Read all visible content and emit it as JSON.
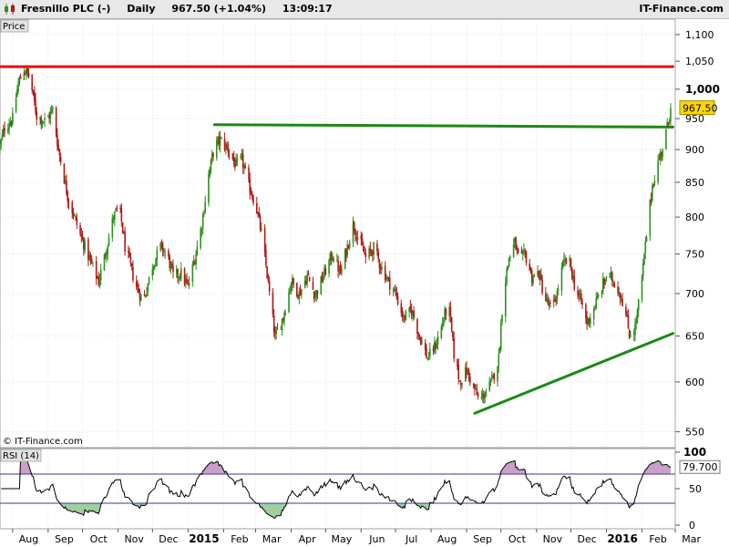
{
  "header": {
    "instrument": "Fresnillo PLC (-)",
    "interval": "Daily",
    "price_change": "967.50 (+1.04%)",
    "time": "13:09:17",
    "brand": "IT-Finance.com"
  },
  "price_panel": {
    "label": "Price",
    "copyright": "© IT-Finance.com",
    "last_price_label": "967.50"
  },
  "rsi_panel": {
    "label": "RSI (14)",
    "value_label": "79.700"
  },
  "colors": {
    "up": "#2f8f1f",
    "down": "#b01818",
    "resistance": "#e01010",
    "trendline": "#1a8a12",
    "grid": "#cccccc",
    "rsi_line": "#000000",
    "rsi_band": "#3a3a9a",
    "price_tag": "#ffd800"
  },
  "chart_data": [
    {
      "type": "candlestick",
      "title": "Fresnillo PLC (-)",
      "ylabel": "Price",
      "y_axis": {
        "ticks": [
          550,
          600,
          650,
          700,
          750,
          800,
          850,
          900,
          950,
          1000,
          1050,
          1100
        ],
        "tick_labels": [
          "550",
          "600",
          "650",
          "700",
          "750",
          "800",
          "850",
          "900",
          "950",
          "1,000",
          "1,050",
          "1,100"
        ],
        "bold_tick": 1000,
        "scale": "log",
        "range": [
          535,
          1130
        ]
      },
      "x_axis": {
        "tick_labels": [
          "Aug",
          "Sep",
          "Oct",
          "Nov",
          "Dec",
          "2015",
          "Feb",
          "Mar",
          "Apr",
          "May",
          "Jun",
          "Jul",
          "Aug",
          "Sep",
          "Oct",
          "Nov",
          "Dec",
          "2016",
          "Feb",
          "Mar"
        ],
        "bold_labels": [
          "2015",
          "2016"
        ],
        "range": [
          "2014-07-21",
          "2016-03-01"
        ]
      },
      "close_path": [
        [
          "2014-07-21",
          905
        ],
        [
          "2014-07-25",
          935
        ],
        [
          "2014-08-01",
          950
        ],
        [
          "2014-08-06",
          1010
        ],
        [
          "2014-08-11",
          1035
        ],
        [
          "2014-08-16",
          1020
        ],
        [
          "2014-08-22",
          955
        ],
        [
          "2014-08-30",
          945
        ],
        [
          "2014-09-05",
          965
        ],
        [
          "2014-09-10",
          900
        ],
        [
          "2014-09-18",
          830
        ],
        [
          "2014-09-28",
          780
        ],
        [
          "2014-10-08",
          740
        ],
        [
          "2014-10-15",
          715
        ],
        [
          "2014-10-20",
          745
        ],
        [
          "2014-10-28",
          800
        ],
        [
          "2014-11-02",
          815
        ],
        [
          "2014-11-07",
          760
        ],
        [
          "2014-11-16",
          712
        ],
        [
          "2014-11-23",
          690
        ],
        [
          "2014-12-01",
          735
        ],
        [
          "2014-12-08",
          760
        ],
        [
          "2014-12-14",
          748
        ],
        [
          "2014-12-19",
          722
        ],
        [
          "2014-12-26",
          725
        ],
        [
          "2015-01-01",
          708
        ],
        [
          "2015-01-07",
          745
        ],
        [
          "2015-01-13",
          790
        ],
        [
          "2015-01-19",
          860
        ],
        [
          "2015-01-24",
          905
        ],
        [
          "2015-01-29",
          915
        ],
        [
          "2015-02-05",
          900
        ],
        [
          "2015-02-12",
          875
        ],
        [
          "2015-02-17",
          885
        ],
        [
          "2015-02-22",
          850
        ],
        [
          "2015-03-01",
          818
        ],
        [
          "2015-03-07",
          770
        ],
        [
          "2015-03-13",
          700
        ],
        [
          "2015-03-18",
          648
        ],
        [
          "2015-03-25",
          672
        ],
        [
          "2015-04-01",
          715
        ],
        [
          "2015-04-08",
          700
        ],
        [
          "2015-04-15",
          722
        ],
        [
          "2015-04-22",
          698
        ],
        [
          "2015-04-30",
          725
        ],
        [
          "2015-05-07",
          750
        ],
        [
          "2015-05-14",
          725
        ],
        [
          "2015-05-20",
          760
        ],
        [
          "2015-05-25",
          790
        ],
        [
          "2015-05-30",
          770
        ],
        [
          "2015-06-05",
          745
        ],
        [
          "2015-06-12",
          758
        ],
        [
          "2015-06-18",
          735
        ],
        [
          "2015-06-25",
          715
        ],
        [
          "2015-07-01",
          700
        ],
        [
          "2015-07-08",
          670
        ],
        [
          "2015-07-15",
          680
        ],
        [
          "2015-07-22",
          650
        ],
        [
          "2015-07-29",
          625
        ],
        [
          "2015-08-05",
          640
        ],
        [
          "2015-08-10",
          660
        ],
        [
          "2015-08-16",
          690
        ],
        [
          "2015-08-21",
          630
        ],
        [
          "2015-08-26",
          600
        ],
        [
          "2015-09-01",
          612
        ],
        [
          "2015-09-07",
          595
        ],
        [
          "2015-09-12",
          580
        ],
        [
          "2015-09-18",
          590
        ],
        [
          "2015-09-23",
          600
        ],
        [
          "2015-09-29",
          625
        ],
        [
          "2015-10-03",
          700
        ],
        [
          "2015-10-08",
          745
        ],
        [
          "2015-10-13",
          765
        ],
        [
          "2015-10-17",
          740
        ],
        [
          "2015-10-22",
          750
        ],
        [
          "2015-10-28",
          720
        ],
        [
          "2015-11-03",
          725
        ],
        [
          "2015-11-08",
          695
        ],
        [
          "2015-11-14",
          680
        ],
        [
          "2015-11-19",
          700
        ],
        [
          "2015-11-24",
          735
        ],
        [
          "2015-11-29",
          745
        ],
        [
          "2015-12-05",
          705
        ],
        [
          "2015-12-10",
          690
        ],
        [
          "2015-12-15",
          665
        ],
        [
          "2015-12-20",
          678
        ],
        [
          "2015-12-26",
          700
        ],
        [
          "2016-01-01",
          722
        ],
        [
          "2016-01-06",
          718
        ],
        [
          "2016-01-11",
          706
        ],
        [
          "2016-01-16",
          688
        ],
        [
          "2016-01-21",
          652
        ],
        [
          "2016-01-26",
          660
        ],
        [
          "2016-01-31",
          705
        ],
        [
          "2016-02-05",
          775
        ],
        [
          "2016-02-10",
          845
        ],
        [
          "2016-02-15",
          880
        ],
        [
          "2016-02-20",
          910
        ],
        [
          "2016-02-24",
          945
        ],
        [
          "2016-02-26",
          967.5
        ]
      ],
      "lines": [
        {
          "name": "resistance",
          "from": [
            "2014-07-21",
            1040
          ],
          "to": [
            "2016-02-28",
            1040
          ]
        },
        {
          "name": "neckline",
          "from": [
            "2015-01-24",
            940
          ],
          "to": [
            "2016-02-28",
            936
          ]
        },
        {
          "name": "support",
          "from": [
            "2015-09-08",
            568
          ],
          "to": [
            "2016-02-28",
            653
          ]
        }
      ],
      "last_price": 967.5
    },
    {
      "type": "line",
      "title": "RSI (14)",
      "y_axis": {
        "ticks": [
          0,
          50,
          100
        ],
        "tick_labels": [
          "0",
          "50",
          "100"
        ],
        "range": [
          0,
          100
        ],
        "bands": [
          30,
          70
        ]
      },
      "last_value": 79.7
    }
  ]
}
